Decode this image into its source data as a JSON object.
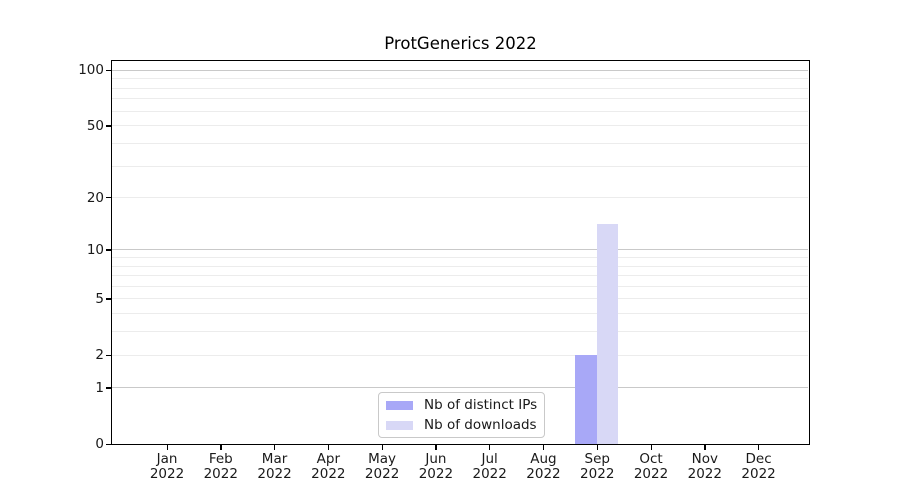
{
  "title": "ProtGenerics 2022",
  "chart_data": {
    "type": "bar",
    "title": "ProtGenerics 2022",
    "categories": [
      "Jan 2022",
      "Feb 2022",
      "Mar 2022",
      "Apr 2022",
      "May 2022",
      "Jun 2022",
      "Jul 2022",
      "Aug 2022",
      "Sep 2022",
      "Oct 2022",
      "Nov 2022",
      "Dec 2022"
    ],
    "x_tick_months": [
      "Jan",
      "Feb",
      "Mar",
      "Apr",
      "May",
      "Jun",
      "Jul",
      "Aug",
      "Sep",
      "Oct",
      "Nov",
      "Dec"
    ],
    "x_tick_year": "2022",
    "series": [
      {
        "name": "Nb of distinct IPs",
        "color": "#a8a8f7",
        "values": [
          0,
          0,
          0,
          0,
          0,
          0,
          0,
          0,
          2,
          0,
          0,
          0
        ]
      },
      {
        "name": "Nb of downloads",
        "color": "#d8d8f6",
        "values": [
          0,
          0,
          0,
          0,
          0,
          0,
          0,
          0,
          14,
          0,
          0,
          0
        ]
      }
    ],
    "y_scale": "log10(value+1)",
    "y_ticks": [
      0,
      1,
      2,
      5,
      10,
      20,
      50,
      100
    ],
    "y_major_gridlines": [
      1,
      10,
      100
    ],
    "y_minor_gridlines": [
      2,
      3,
      4,
      5,
      6,
      7,
      8,
      9,
      20,
      30,
      40,
      50,
      60,
      70,
      80,
      90
    ],
    "ylim": [
      0,
      114
    ],
    "grid": true,
    "legend_position": "inside-bottom-center"
  },
  "colors": {
    "bar_distinct_ips": "#a8a8f7",
    "bar_downloads": "#d8d8f6",
    "major_gridline": "#c9c9c9",
    "minor_gridline": "#ececec",
    "axis": "#000000",
    "text": "#1a1a1a",
    "legend_border": "#c9c9c9",
    "background": "#ffffff"
  }
}
